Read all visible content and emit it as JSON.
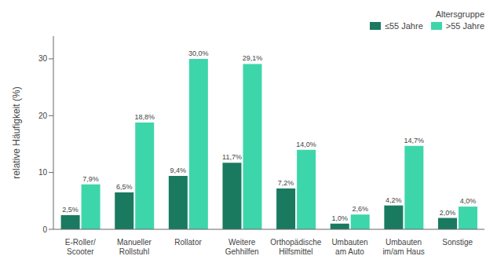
{
  "chart_data": {
    "type": "bar",
    "categories": [
      "E-Roller/\nScooter",
      "Manueller\nRollstuhl",
      "Rollator",
      "Weitere\nGehhilfen",
      "Orthopädische\nHilfsmittel",
      "Umbauten\nam Auto",
      "Umbauten\nim/am Haus",
      "Sonstige"
    ],
    "series": [
      {
        "name": "≤55 Jahre",
        "color": "#1a7a60",
        "values": [
          2.5,
          6.5,
          9.4,
          11.7,
          7.2,
          1.0,
          4.2,
          2.0
        ],
        "value_labels": [
          "2,5%",
          "6,5%",
          "9,4%",
          "11,7%",
          "7,2%",
          "1,0%",
          "4,2%",
          "2,0%"
        ]
      },
      {
        "name": ">55 Jahre",
        "color": "#3dd6aa",
        "values": [
          7.9,
          18.8,
          30.0,
          29.1,
          14.0,
          2.6,
          14.7,
          4.0
        ],
        "value_labels": [
          "7,9%",
          "18,8%",
          "30,0%",
          "29,1%",
          "14,0%",
          "2,6%",
          "14,7%",
          "4,0%"
        ]
      }
    ],
    "ylabel": "relative Häufigkeit (%)",
    "legend_title": "Altersgruppe",
    "ylim": [
      0,
      34
    ],
    "yticks": [
      0,
      10,
      20,
      30
    ],
    "grid": false,
    "legend": "upper right",
    "data_labels": true
  }
}
